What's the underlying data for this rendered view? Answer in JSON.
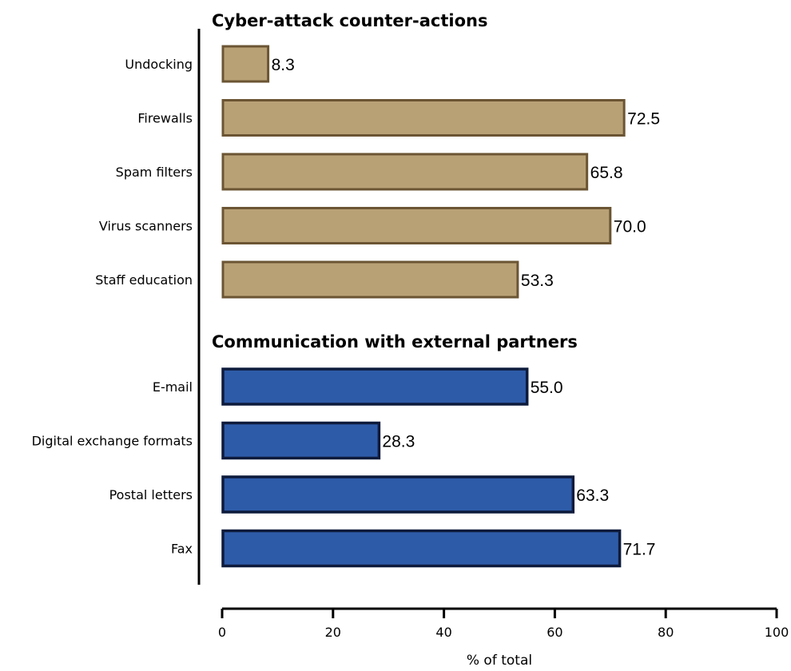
{
  "chart_data": {
    "type": "bar",
    "orientation": "horizontal",
    "xlabel": "% of total",
    "xlim": [
      0,
      100
    ],
    "x_ticks": [
      0,
      20,
      40,
      60,
      80,
      100
    ],
    "grid": false,
    "groups": [
      {
        "title": "Cyber-attack counter-actions",
        "fill": "#B9A176",
        "stroke": "#6B5533",
        "categories": [
          "Undocking",
          "Firewalls",
          "Spam filters",
          "Virus scanners",
          "Staff education"
        ],
        "values": [
          8.3,
          72.5,
          65.8,
          70.0,
          53.3
        ],
        "value_labels": [
          "8.3",
          "72.5",
          "65.8",
          "70.0",
          "53.3"
        ]
      },
      {
        "title": "Communication with external partners",
        "fill": "#2E5BA8",
        "stroke": "#0D1B3C",
        "categories": [
          "E-mail",
          "Digital exchange formats",
          "Postal letters",
          "Fax"
        ],
        "values": [
          55.0,
          28.3,
          63.3,
          71.7
        ],
        "value_labels": [
          "55.0",
          "28.3",
          "63.3",
          "71.7"
        ]
      }
    ]
  }
}
